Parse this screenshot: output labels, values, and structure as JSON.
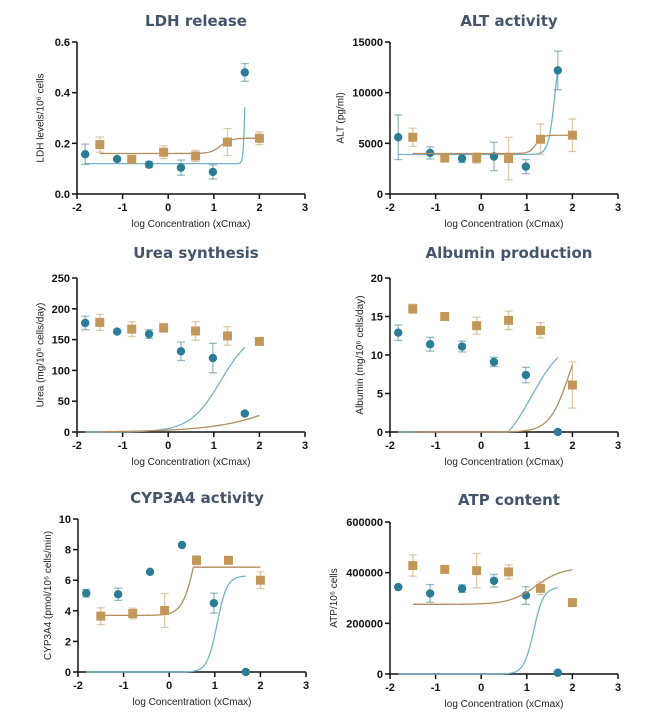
{
  "colors": {
    "blue": "#2b7c96",
    "blue_fit": "#74b3c9",
    "gold": "#c3975a",
    "gold_fit": "#b38d60",
    "title": "#44546b"
  },
  "chart_data": [
    {
      "type": "scatter",
      "title": "LDH release",
      "xlabel": "log Concentration (xCmax)",
      "ylabel": "LDH levels/10⁶ cells",
      "xlim": [
        -2,
        3
      ],
      "ylim": [
        0,
        0.6
      ],
      "xticks": [
        "-2",
        "-1",
        "0",
        "1",
        "2",
        "3"
      ],
      "yticks": [
        "0.0",
        "0.2",
        "0.4",
        "0.6"
      ],
      "series": [
        {
          "marker": "circle",
          "color": "blue",
          "x": [
            -1.82,
            -1.12,
            -0.42,
            0.28,
            0.98,
            1.68
          ],
          "y": [
            0.157,
            0.138,
            0.116,
            0.104,
            0.087,
            0.48
          ],
          "err": [
            0.04,
            0.005,
            0.012,
            0.03,
            0.028,
            0.035
          ],
          "fit": {
            "bottom": 0.12,
            "top": 0.9,
            "logEC50": 1.7,
            "hill": 20
          }
        },
        {
          "marker": "square",
          "color": "gold",
          "x": [
            -1.5,
            -0.8,
            -0.1,
            0.6,
            1.3,
            2.0
          ],
          "y": [
            0.195,
            0.137,
            0.165,
            0.15,
            0.205,
            0.22
          ],
          "err": [
            0.03,
            0.005,
            0.025,
            0.022,
            0.053,
            0.025
          ],
          "fit": {
            "bottom": 0.16,
            "top": 0.22,
            "logEC50": 1.15,
            "hill": 4
          }
        }
      ]
    },
    {
      "type": "scatter",
      "title": "ALT activity",
      "xlabel": "log Concentration (xCmax)",
      "ylabel": "ALT (pg/ml)",
      "xlim": [
        -2,
        3
      ],
      "ylim": [
        0,
        15000
      ],
      "xticks": [
        "-2",
        "-1",
        "0",
        "1",
        "2",
        "3"
      ],
      "yticks": [
        "0",
        "5000",
        "10000",
        "15000"
      ],
      "series": [
        {
          "marker": "circle",
          "color": "blue",
          "x": [
            -1.82,
            -1.12,
            -0.42,
            0.28,
            0.98,
            1.68
          ],
          "y": [
            5600,
            4050,
            3500,
            3700,
            2700,
            12200
          ],
          "err": [
            2200,
            600,
            400,
            1400,
            700,
            1900
          ],
          "fit": {
            "bottom": 3900,
            "top": 16000,
            "logEC50": 1.62,
            "hill": 6
          }
        },
        {
          "marker": "square",
          "color": "gold",
          "x": [
            -1.5,
            -0.8,
            -0.1,
            0.6,
            1.3,
            2.0
          ],
          "y": [
            5600,
            3550,
            3550,
            3500,
            5400,
            5800
          ],
          "err": [
            900,
            200,
            500,
            2100,
            1500,
            1600
          ],
          "fit": {
            "bottom": 4000,
            "top": 5800,
            "logEC50": 1.2,
            "hill": 6
          }
        }
      ]
    },
    {
      "type": "scatter",
      "title": "Urea synthesis",
      "xlabel": "log Concentration (xCmax)",
      "ylabel": "Urea (mg/10⁶ cells/day)",
      "xlim": [
        -2,
        3
      ],
      "ylim": [
        0,
        250
      ],
      "xticks": [
        "-2",
        "-1",
        "0",
        "1",
        "2",
        "3"
      ],
      "yticks": [
        "0",
        "50",
        "100",
        "150",
        "200",
        "250"
      ],
      "series": [
        {
          "marker": "circle",
          "color": "blue",
          "x": [
            -1.82,
            -1.12,
            -0.42,
            0.28,
            0.98,
            1.68
          ],
          "y": [
            177,
            163,
            159,
            131,
            120,
            30
          ],
          "err": [
            11,
            2,
            7,
            15,
            24,
            2
          ],
          "fit": {
            "bottom": 0,
            "top": 168,
            "logEC50": 1.16,
            "hill": 1.26
          }
        },
        {
          "marker": "square",
          "color": "gold",
          "x": [
            -1.5,
            -0.8,
            -0.1,
            0.6,
            1.3,
            2.0
          ],
          "y": [
            178,
            167,
            169,
            164,
            156,
            147
          ],
          "err": [
            13,
            12,
            7,
            15,
            15,
            2
          ],
          "fit": {
            "bottom": 0,
            "top": 178,
            "logEC50": 3.5,
            "hill": 0.5
          }
        }
      ]
    },
    {
      "type": "scatter",
      "title": "Albumin production",
      "xlabel": "log Concentration (xCmax)",
      "ylabel": "Albumin (mg/10⁶ cells/day)",
      "xlim": [
        -2,
        3
      ],
      "ylim": [
        0,
        20
      ],
      "xticks": [
        "-2",
        "-1",
        "0",
        "1",
        "2",
        "3"
      ],
      "yticks": [
        "0",
        "5",
        "10",
        "15",
        "20"
      ],
      "series": [
        {
          "marker": "circle",
          "color": "blue",
          "x": [
            -1.82,
            -1.12,
            -0.42,
            0.28,
            0.98,
            1.68
          ],
          "y": [
            12.9,
            11.4,
            11.1,
            9.1,
            7.4,
            0
          ],
          "err": [
            1.0,
            0.9,
            0.7,
            0.6,
            1.0,
            0.1
          ],
          "fit": {
            "bottom": -3,
            "top": 12.2,
            "logEC50": 1.1,
            "hill": 1.2
          }
        },
        {
          "marker": "square",
          "color": "gold",
          "x": [
            -1.5,
            -0.8,
            -0.1,
            0.6,
            1.3,
            2.0
          ],
          "y": [
            16.0,
            15.0,
            13.8,
            14.5,
            13.2,
            6.1
          ],
          "err": [
            0.6,
            0.1,
            1.1,
            1.2,
            1.0,
            3.0
          ],
          "fit": {
            "bottom": 0,
            "top": 15,
            "logEC50": 1.93,
            "hill": 2
          }
        }
      ]
    },
    {
      "type": "scatter",
      "title": "CYP3A4 activity",
      "xlabel": "log Concentration (xCmax)",
      "ylabel": "CYP3A4 (pmol/10⁶ cells/min)",
      "xlim": [
        -2,
        3
      ],
      "ylim": [
        0,
        10
      ],
      "xticks": [
        "-2",
        "-1",
        "0",
        "1",
        "2",
        "3"
      ],
      "yticks": [
        "0",
        "2",
        "4",
        "6",
        "8",
        "10"
      ],
      "series": [
        {
          "marker": "circle",
          "color": "blue",
          "x": [
            -1.82,
            -1.12,
            -0.42,
            0.28,
            0.98,
            1.68
          ],
          "y": [
            5.15,
            5.08,
            6.55,
            8.3,
            4.5,
            0
          ],
          "err": [
            0.25,
            0.4,
            0.05,
            0.05,
            0.65,
            0.05
          ],
          "fit": {
            "bottom": 0,
            "top": 6.28,
            "logEC50": 1.05,
            "hill": 4
          }
        },
        {
          "marker": "square",
          "color": "gold",
          "x": [
            -1.5,
            -0.8,
            -0.1,
            0.6,
            1.3,
            2.0
          ],
          "y": [
            3.65,
            3.82,
            4.02,
            7.3,
            7.3,
            6.0
          ],
          "err": [
            0.55,
            0.35,
            1.1,
            0.3,
            0.05,
            0.55
          ],
          "fit": {
            "bottom": 3.7,
            "top": 12,
            "logEC50": 0.6,
            "hill": 3,
            "max": 6.85
          }
        }
      ]
    },
    {
      "type": "scatter",
      "title": "ATP content",
      "xlabel": "log Concentration (xCmax)",
      "ylabel": "ATP/10⁶ cells",
      "xlim": [
        -2,
        3
      ],
      "ylim": [
        0,
        600000
      ],
      "xticks": [
        "-2",
        "-1",
        "0",
        "1",
        "2",
        "3"
      ],
      "yticks": [
        "0",
        "200000",
        "400000",
        "600000"
      ],
      "series": [
        {
          "marker": "circle",
          "color": "blue",
          "x": [
            -1.82,
            -1.12,
            -0.42,
            0.28,
            0.98,
            1.68
          ],
          "y": [
            343000,
            318000,
            337000,
            368000,
            310000,
            5000
          ],
          "err": [
            3000,
            35000,
            15000,
            25000,
            35000,
            3000
          ],
          "fit": {
            "bottom": 0,
            "top": 342000,
            "logEC50": 1.15,
            "hill": 4
          }
        },
        {
          "marker": "square",
          "color": "gold",
          "x": [
            -1.5,
            -0.8,
            -0.1,
            0.6,
            1.3,
            2.0
          ],
          "y": [
            428000,
            413000,
            408000,
            403000,
            338000,
            282000
          ],
          "err": [
            42000,
            5000,
            68000,
            28000,
            25000,
            5000
          ],
          "fit": {
            "bottom": 275000,
            "top": 420000,
            "logEC50": 1.2,
            "hill": 1.5
          }
        }
      ]
    }
  ]
}
